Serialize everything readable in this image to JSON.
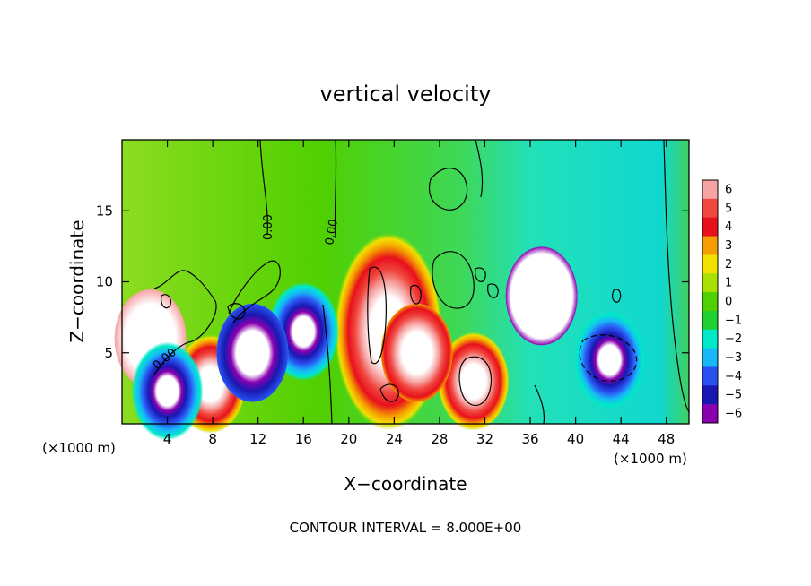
{
  "chart_data": {
    "type": "heatmap",
    "title": "vertical velocity",
    "xlabel": "X−coordinate",
    "ylabel": "Z−coordinate",
    "x_unit_left": "(×1000 m)",
    "x_unit_right": "(×1000 m)",
    "xlim": [
      0,
      50
    ],
    "ylim": [
      0,
      20
    ],
    "x_ticks": [
      4,
      8,
      12,
      16,
      20,
      24,
      28,
      32,
      36,
      40,
      44,
      48
    ],
    "y_ticks": [
      5,
      10,
      15
    ],
    "contour_label": "0.00",
    "footer": "CONTOUR INTERVAL = 8.000E+00",
    "colorbar": {
      "levels": [
        "6",
        "5",
        "4",
        "3",
        "2",
        "1",
        "0",
        "−1",
        "−2",
        "−3",
        "−4",
        "−5",
        "−6"
      ],
      "colors": [
        "#f6a3a3",
        "#f0473f",
        "#e8101c",
        "#f59c00",
        "#f2e000",
        "#a8e000",
        "#50d000",
        "#20d030",
        "#00e8c8",
        "#18b8f8",
        "#2a50f0",
        "#1818b0",
        "#8a00b0"
      ]
    },
    "features": [
      {
        "kind": "updraft",
        "x": 23.5,
        "z": 6.5,
        "w": 6
      },
      {
        "kind": "updraft",
        "x": 31.0,
        "z": 3.0,
        "w": 6
      },
      {
        "kind": "updraft",
        "x": 7.8,
        "z": 2.8,
        "w": 6
      },
      {
        "kind": "updraft",
        "x": 2.5,
        "z": 6.0,
        "w": 3
      },
      {
        "kind": "updraft",
        "x": 26.0,
        "z": 5.0,
        "w": 5
      },
      {
        "kind": "downdraft",
        "x": 4.0,
        "z": 2.3,
        "w": -6
      },
      {
        "kind": "downdraft",
        "x": 16.0,
        "z": 6.5,
        "w": -6
      },
      {
        "kind": "downdraft",
        "x": 43.0,
        "z": 4.5,
        "w": -6
      },
      {
        "kind": "downdraft",
        "x": 11.5,
        "z": 5.0,
        "w": -4
      },
      {
        "kind": "downdraft",
        "x": 37.0,
        "z": 9.0,
        "w": -2
      }
    ]
  }
}
